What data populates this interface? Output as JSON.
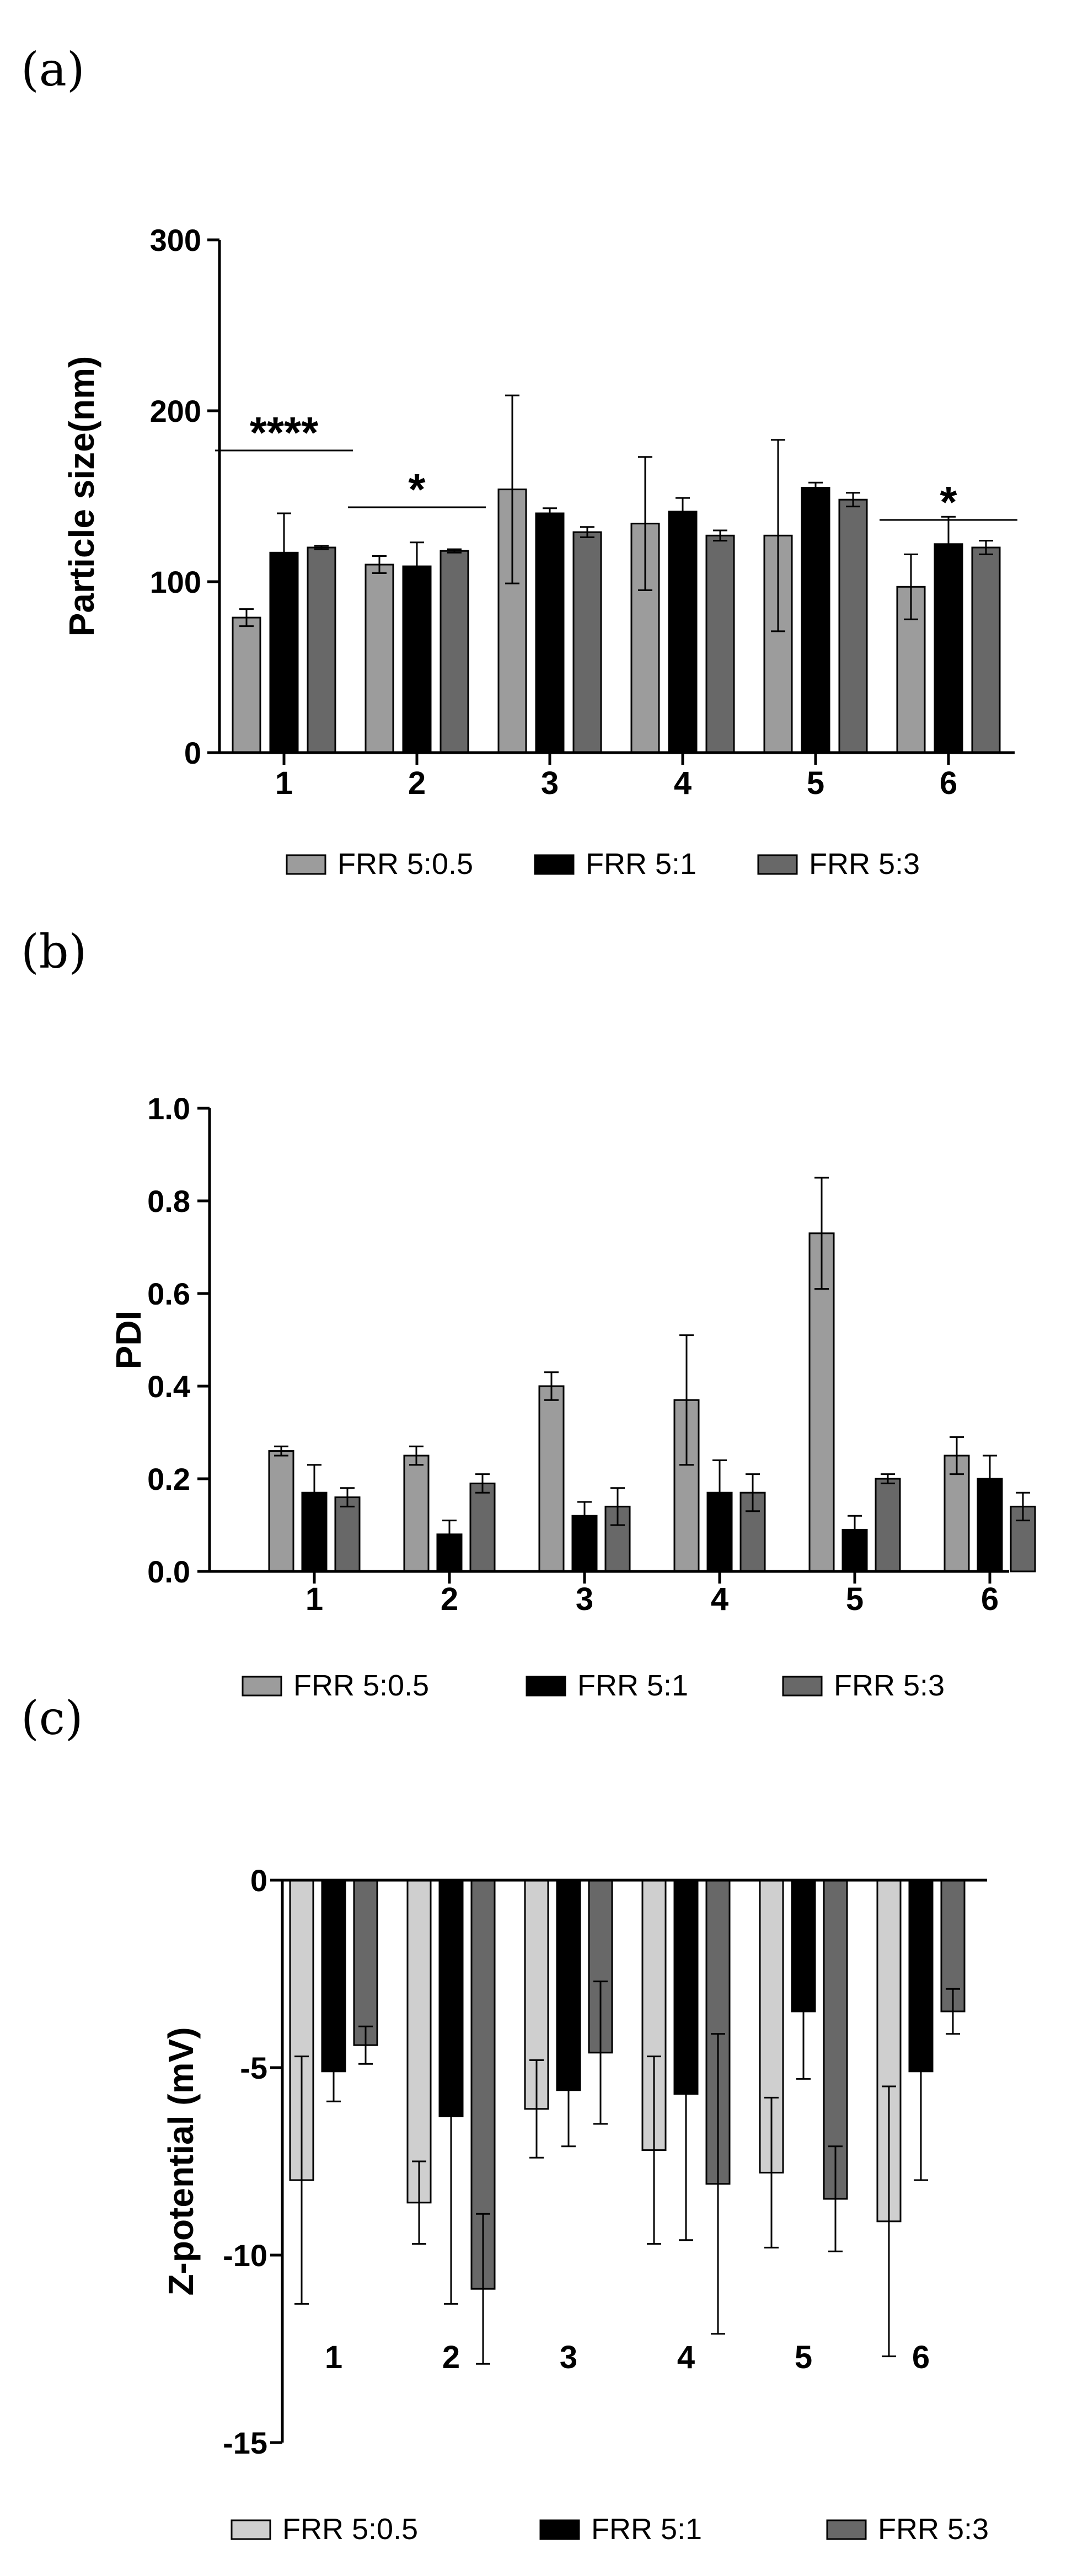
{
  "colors": {
    "frr_05": "#9c9c9c",
    "frr_1": "#000000",
    "frr_3": "#686868",
    "frr_05_c": "#cfcfcf"
  },
  "chart_data": [
    {
      "panel": "(a)",
      "type": "bar",
      "ylabel": "Particle size(nm)",
      "xlabel": "",
      "ylim": [
        0,
        300
      ],
      "yticks": [
        0,
        100,
        200,
        300
      ],
      "categories": [
        "1",
        "2",
        "3",
        "4",
        "5",
        "6"
      ],
      "series": [
        {
          "name": "FRR 5:0.5",
          "values": [
            79,
            110,
            154,
            134,
            127,
            97
          ],
          "errors": [
            5,
            5,
            55,
            39,
            56,
            19
          ]
        },
        {
          "name": "FRR 5:1",
          "values": [
            117,
            109,
            140,
            141,
            155,
            122
          ],
          "errors": [
            23,
            14,
            3,
            8,
            3,
            16
          ]
        },
        {
          "name": "FRR 5:3",
          "values": [
            120,
            118,
            129,
            127,
            148,
            120
          ],
          "errors": [
            1,
            1,
            3,
            3,
            4,
            4
          ]
        }
      ],
      "annotations": [
        {
          "text": "****",
          "category": "1"
        },
        {
          "text": "*",
          "category": "2"
        },
        {
          "text": "*",
          "category": "6"
        }
      ],
      "legend": "bottom"
    },
    {
      "panel": "(b)",
      "type": "bar",
      "ylabel": "PDI",
      "xlabel": "",
      "ylim": [
        0,
        1.0
      ],
      "yticks": [
        "0.0",
        "0.2",
        "0.4",
        "0.6",
        "0.8",
        "1.0"
      ],
      "categories": [
        "1",
        "2",
        "3",
        "4",
        "5",
        "6"
      ],
      "series": [
        {
          "name": "FRR 5:0.5",
          "values": [
            0.26,
            0.25,
            0.4,
            0.37,
            0.73,
            0.25
          ],
          "errors": [
            0.01,
            0.02,
            0.03,
            0.14,
            0.12,
            0.04
          ]
        },
        {
          "name": "FRR 5:1",
          "values": [
            0.17,
            0.08,
            0.12,
            0.17,
            0.09,
            0.2
          ],
          "errors": [
            0.06,
            0.03,
            0.03,
            0.07,
            0.03,
            0.05
          ]
        },
        {
          "name": "FRR 5:3",
          "values": [
            0.16,
            0.19,
            0.14,
            0.17,
            0.2,
            0.14
          ],
          "errors": [
            0.02,
            0.02,
            0.04,
            0.04,
            0.01,
            0.03
          ]
        }
      ],
      "legend": "bottom"
    },
    {
      "panel": "(c)",
      "type": "bar",
      "ylabel": "Z-potential (mV)",
      "xlabel": "",
      "ylim": [
        -15,
        0
      ],
      "yticks": [
        "-15",
        "-10",
        "-5",
        "0"
      ],
      "categories": [
        "1",
        "2",
        "3",
        "4",
        "5",
        "6"
      ],
      "series": [
        {
          "name": "FRR 5:0.5",
          "values": [
            -8.0,
            -8.6,
            -6.1,
            -7.2,
            -7.8,
            -9.1
          ],
          "errors": [
            3.3,
            1.1,
            1.3,
            2.5,
            2.0,
            3.6
          ]
        },
        {
          "name": "FRR 5:1",
          "values": [
            -5.1,
            -6.3,
            -5.6,
            -5.7,
            -3.5,
            -5.1
          ],
          "errors": [
            0.8,
            5.0,
            1.5,
            3.9,
            1.8,
            2.9
          ]
        },
        {
          "name": "FRR 5:3",
          "values": [
            -4.4,
            -10.9,
            -4.6,
            -8.1,
            -8.5,
            -3.5
          ],
          "errors": [
            0.5,
            2.0,
            1.9,
            4.0,
            1.4,
            0.6
          ]
        }
      ],
      "legend": "bottom"
    }
  ]
}
